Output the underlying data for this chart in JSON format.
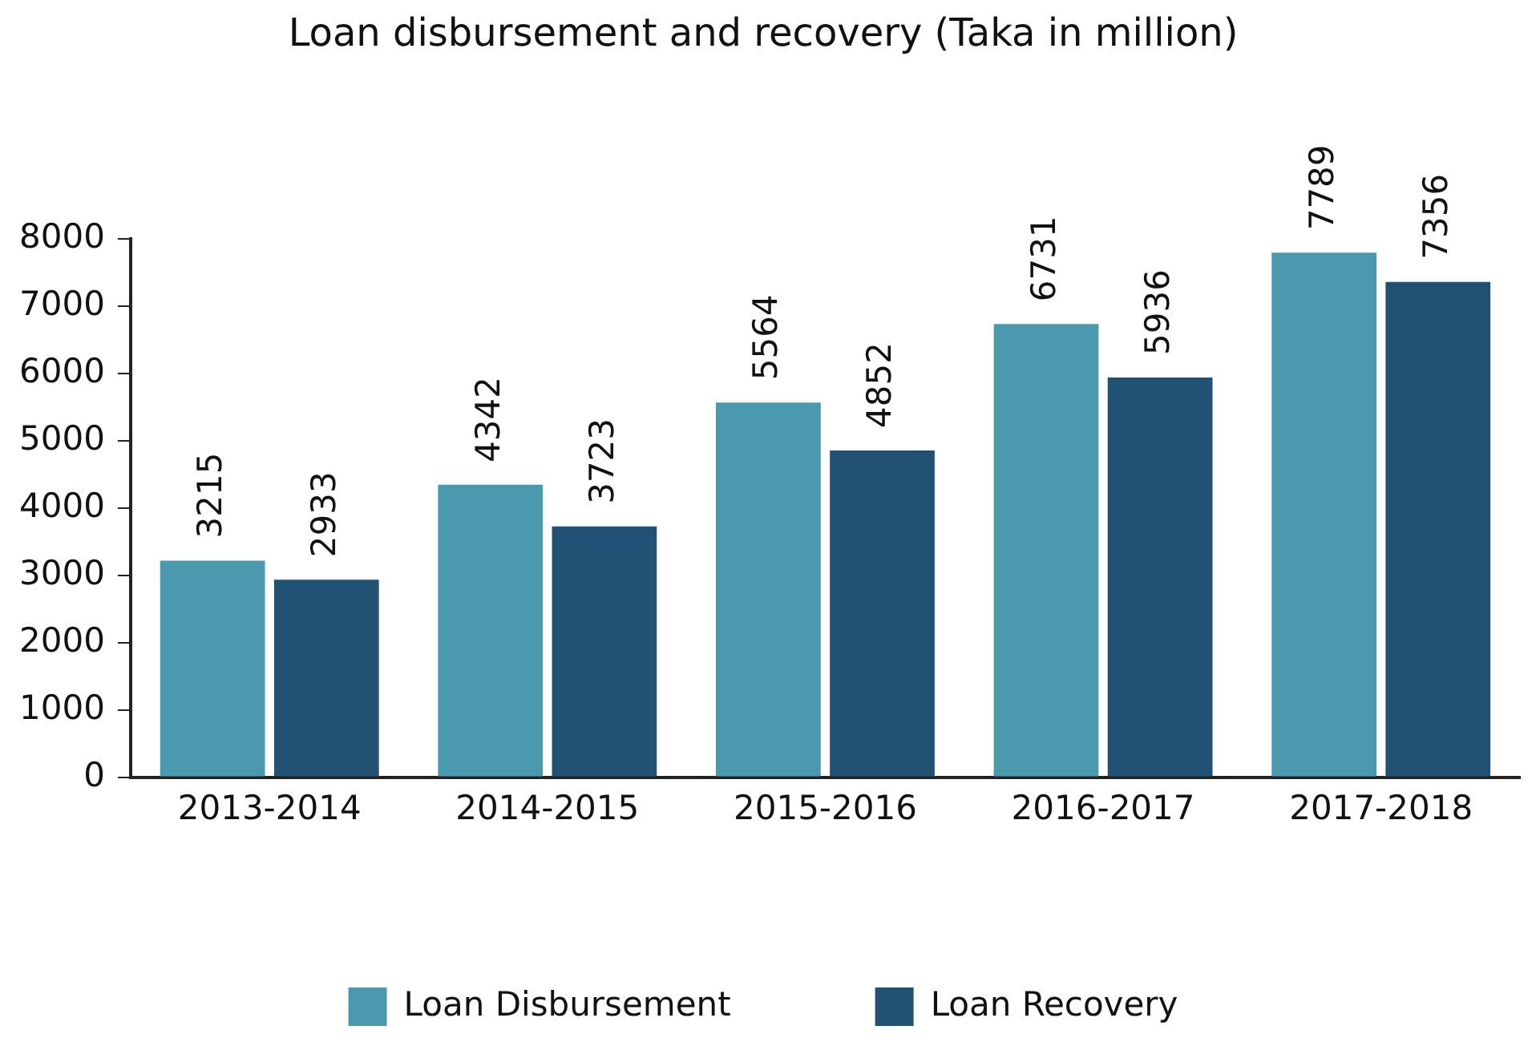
{
  "chart_data": {
    "type": "bar",
    "title": "Loan disbursement and recovery (Taka in million)",
    "categories": [
      "2013-2014",
      "2014-2015",
      "2015-2016",
      "2016-2017",
      "2017-2018"
    ],
    "series": [
      {
        "name": "Loan Disbursement",
        "color": "#4a99ae",
        "values": [
          3215,
          4342,
          5564,
          6731,
          7789
        ]
      },
      {
        "name": "Loan Recovery",
        "color": "#215273",
        "values": [
          2933,
          3723,
          4852,
          5936,
          7356
        ]
      }
    ],
    "ylim": [
      0,
      8000
    ],
    "yticks": [
      0,
      1000,
      2000,
      3000,
      4000,
      5000,
      6000,
      7000,
      8000
    ],
    "grid": false,
    "legend": "bottom",
    "data_labels": true
  }
}
